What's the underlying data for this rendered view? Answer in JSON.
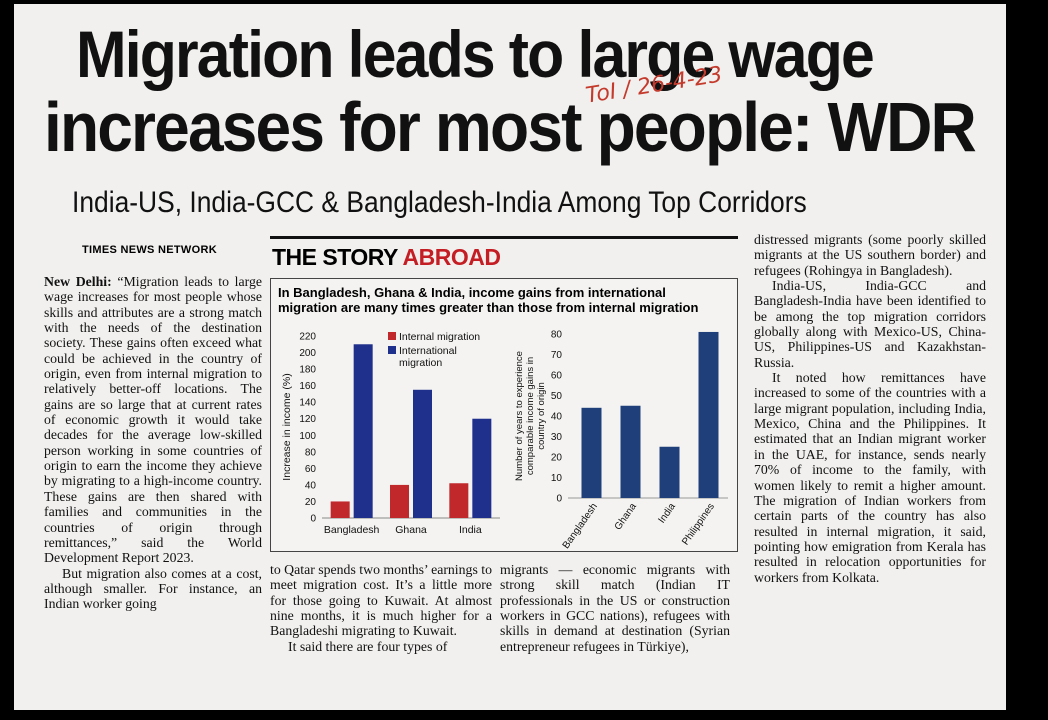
{
  "headline": {
    "line1": "Migration leads to large wage",
    "line2": "increases for most people: WDR",
    "subhead": "India-US, India-GCC & Bangladesh-India Among Top Corridors",
    "handwritten_note": "ToI / 26-4-23"
  },
  "byline": "TIMES NEWS NETWORK",
  "section_label": {
    "part1": "THE STORY",
    "part2": "ABROAD"
  },
  "chart_title": "In Bangladesh, Ghana & India, income gains from international migration are many times greater than those from internal migration",
  "chart_data": [
    {
      "type": "bar",
      "categories": [
        "Bangladesh",
        "Ghana",
        "India"
      ],
      "series": [
        {
          "name": "Internal migration",
          "values": [
            20,
            40,
            42
          ],
          "color": "#c0282c"
        },
        {
          "name": "International migration",
          "values": [
            210,
            155,
            120
          ],
          "color": "#1f2f8c"
        }
      ],
      "ylabel": "Increase in income (%)",
      "ylim": [
        0,
        220
      ],
      "yticks": [
        "0",
        "20",
        "40",
        "60",
        "80",
        "100",
        "120",
        "140",
        "160",
        "180",
        "200",
        "220"
      ],
      "legend": "top-left"
    },
    {
      "type": "bar",
      "categories": [
        "Bangladesh",
        "Ghana",
        "India",
        "Philippines"
      ],
      "values": [
        44,
        45,
        25,
        81
      ],
      "color": "#1f3f7a",
      "ylabel": "Number of years to experience comparable income gains in country of origin",
      "ylim": [
        0,
        80
      ],
      "yticks": [
        "0",
        "10",
        "20",
        "30",
        "40",
        "50",
        "60",
        "70",
        "80"
      ]
    }
  ],
  "columns": {
    "col1": [
      {
        "lead": "New Delhi:",
        "text": " “Migration leads to large wage increases for most people whose skills and attributes are a strong match with the needs of the destination society. These gains often exceed what could be achieved in the country of origin, even from internal migration to relatively better-off locations. The gains are so large that at current rates of economic growth it would take decades for the average low-skilled person working in some countries of origin to earn the income they achieve by migrating to a high-income country. These gains are then shared with families and communities in the countries of origin through remittances,” said the World Development Report 2023."
      },
      {
        "lead": "",
        "text": "But migration also comes at a cost, although smaller. For instance, an Indian worker going"
      }
    ],
    "mid1": [
      {
        "text": "to Qatar spends two months’ earnings to meet migration cost. It’s a little more for those going to Kuwait. At almost nine months, it is much higher for a Bangladeshi migrating to Kuwait."
      },
      {
        "text": "It said there are four types of"
      }
    ],
    "mid2": [
      {
        "text": "migrants — economic migrants with strong skill match (Indian IT professionals in the US or construction workers in GCC nations), refugees with skills in demand at destination (Syrian entrepreneur refugees in Türkiye),"
      }
    ],
    "col3": [
      {
        "text": "distressed migrants (some poorly skilled migrants at the US southern border) and refugees (Rohingya in Bangladesh)."
      },
      {
        "text": "India-US, India-GCC and Bangladesh-India have been identified to be among the top migration corridors globally along with Mexico-US, China-US, Philippines-US and Kazakhstan-Russia."
      },
      {
        "text": "It noted how remittances have increased to some of the countries with a large migrant population, including India, Mexico, China and the Philippines. It estimated that an Indian migrant worker in the UAE, for instance, sends nearly 70% of income to the family, with women likely to remit a higher amount. The migration of Indian workers from certain parts of the country has also resulted in internal migration, it said, pointing how emigration from Kerala has resulted in relocation opportunities for workers from Kolkata."
      }
    ]
  }
}
